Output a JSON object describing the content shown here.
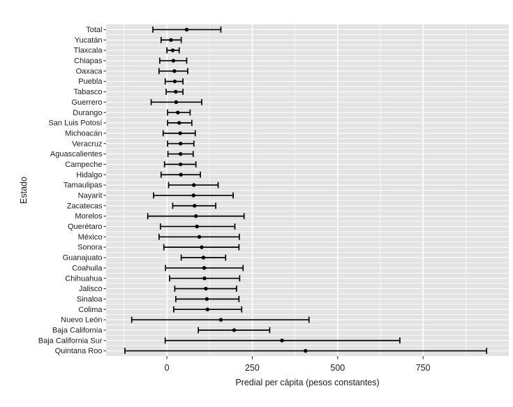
{
  "figure": {
    "title": "",
    "background": "#ffffff"
  },
  "chart_data": {
    "type": "scatter",
    "subtype": "dot-with-error-bars",
    "orientation": "horizontal",
    "title": "",
    "xlabel": "Predial per cápita (pesos constantes)",
    "ylabel": "Estado",
    "x_ticks": [
      0,
      250,
      500,
      750
    ],
    "x_minor_gridlines": [
      -125,
      125,
      375,
      625,
      875
    ],
    "xlim": [
      -178,
      1001
    ],
    "grid": "white-on-gray",
    "legend": "none",
    "panel_bg": "#e3e3e3",
    "gridline_color": "#ffffff",
    "point_color": "#000000",
    "error_bar_color": "#000000",
    "tick_color": "#333333",
    "categories": [
      "Total",
      "Yucatán",
      "Tlaxcala",
      "Chiapas",
      "Oaxaca",
      "Puebla",
      "Tabasco",
      "Guerrero",
      "Durango",
      "San Luis Potosí",
      "Michoacán",
      "Veracruz",
      "Aguascalientes",
      "Campeche",
      "Hidalgo",
      "Tamaulipas",
      "Nayarit",
      "Zacatecas",
      "Morelos",
      "Querétaro",
      "México",
      "Sonora",
      "Guanajuato",
      "Coahuila",
      "Chihuahua",
      "Jalisco",
      "Sinaloa",
      "Colima",
      "Nuevo León",
      "Baja California",
      "Baja California Sur",
      "Quintana Roo"
    ],
    "means": [
      58,
      12,
      17,
      19,
      22,
      23,
      26,
      27,
      32,
      36,
      39,
      40,
      40,
      40,
      41,
      79,
      78,
      81,
      85,
      88,
      95,
      102,
      107,
      109,
      110,
      114,
      117,
      119,
      158,
      197,
      337,
      406
    ],
    "ci_low": [
      -41,
      -17,
      0,
      -21,
      -23,
      -5,
      -2,
      -46,
      2,
      2,
      -11,
      2,
      3,
      -7,
      -17,
      5,
      -39,
      17,
      -56,
      -19,
      -23,
      -9,
      42,
      -4,
      8,
      23,
      26,
      20,
      -103,
      92,
      -5,
      -123
    ],
    "ci_high": [
      158,
      42,
      36,
      58,
      61,
      47,
      47,
      102,
      68,
      73,
      83,
      79,
      77,
      85,
      98,
      150,
      194,
      143,
      226,
      199,
      212,
      211,
      172,
      223,
      213,
      204,
      211,
      219,
      416,
      301,
      682,
      936
    ]
  }
}
